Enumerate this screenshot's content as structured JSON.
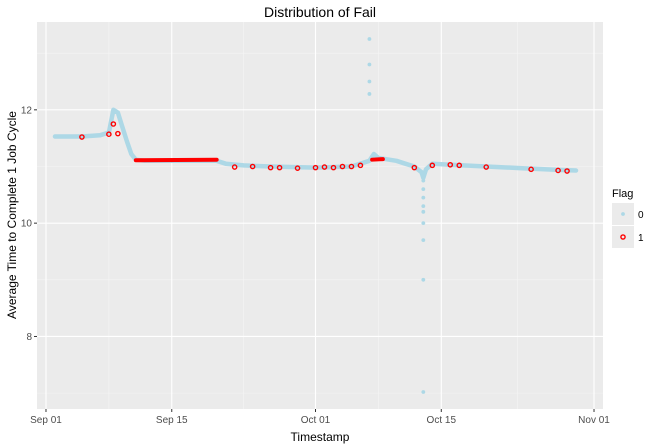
{
  "chart_data": {
    "type": "scatter",
    "title": "Distribution of Fail",
    "xlabel": "Timestamp",
    "ylabel": "Average Time to Complete 1 Job Cycle",
    "x_axis": {
      "type": "date",
      "range": [
        "2023-08-31",
        "2023-11-02"
      ],
      "ticks": [
        {
          "date": "2023-09-01",
          "label": "Sep 01"
        },
        {
          "date": "2023-09-15",
          "label": "Sep 15"
        },
        {
          "date": "2023-10-01",
          "label": "Oct 01"
        },
        {
          "date": "2023-10-15",
          "label": "Oct 15"
        },
        {
          "date": "2023-11-01",
          "label": "Nov 01"
        }
      ]
    },
    "y_axis": {
      "range": [
        6.72,
        13.55
      ],
      "ticks": [
        8,
        10,
        12
      ]
    },
    "grid": true,
    "background": "#ebebeb",
    "legend": {
      "title": "Flag",
      "placement": "right",
      "entries": [
        {
          "label": "0",
          "color": "#add8e6"
        },
        {
          "label": "1",
          "color": "#ff0000"
        }
      ]
    },
    "series": [
      {
        "name": "0",
        "color": "#add8e6",
        "line": [
          [
            "2023-09-02",
            11.53
          ],
          [
            "2023-09-05",
            11.53
          ],
          [
            "2023-09-07",
            11.55
          ],
          [
            "2023-09-08",
            11.6
          ],
          [
            "2023-09-08.5",
            12.0
          ],
          [
            "2023-09-09",
            11.95
          ],
          [
            "2023-09-09.5",
            11.7
          ],
          [
            "2023-09-10",
            11.45
          ],
          [
            "2023-09-10.5",
            11.22
          ],
          [
            "2023-09-11",
            11.12
          ],
          [
            "2023-09-12",
            11.1
          ],
          [
            "2023-09-20",
            11.1
          ],
          [
            "2023-09-21",
            11.05
          ],
          [
            "2023-09-23",
            11.02
          ],
          [
            "2023-09-26",
            11.0
          ],
          [
            "2023-10-01",
            10.98
          ],
          [
            "2023-10-05",
            11.0
          ],
          [
            "2023-10-07",
            11.1
          ],
          [
            "2023-10-07.5",
            11.22
          ],
          [
            "2023-10-08",
            11.15
          ],
          [
            "2023-10-10",
            11.1
          ],
          [
            "2023-10-11",
            11.05
          ],
          [
            "2023-10-12",
            11.0
          ],
          [
            "2023-10-12.8",
            10.9
          ],
          [
            "2023-10-13",
            10.8
          ],
          [
            "2023-10-13.3",
            10.95
          ],
          [
            "2023-10-14",
            11.05
          ],
          [
            "2023-10-16",
            11.03
          ],
          [
            "2023-10-20",
            11.0
          ],
          [
            "2023-10-24",
            10.97
          ],
          [
            "2023-10-28",
            10.94
          ],
          [
            "2023-10-30",
            10.93
          ]
        ],
        "points": [
          [
            "2023-10-07",
            13.25
          ],
          [
            "2023-10-07",
            12.8
          ],
          [
            "2023-10-07",
            12.5
          ],
          [
            "2023-10-07",
            12.28
          ],
          [
            "2023-10-13",
            10.75
          ],
          [
            "2023-10-13",
            10.6
          ],
          [
            "2023-10-13",
            10.45
          ],
          [
            "2023-10-13",
            10.3
          ],
          [
            "2023-10-13",
            10.2
          ],
          [
            "2023-10-13",
            10.0
          ],
          [
            "2023-10-13",
            9.7
          ],
          [
            "2023-10-13",
            9.0
          ],
          [
            "2023-10-13",
            7.02
          ]
        ]
      },
      {
        "name": "1",
        "color": "#ff0000",
        "line": [
          [
            "2023-09-11",
            11.11
          ],
          [
            "2023-09-20",
            11.12
          ],
          [
            "2023-10-07.3",
            11.12
          ],
          [
            "2023-10-08.5",
            11.13
          ]
        ],
        "points": [
          [
            "2023-09-05",
            11.52
          ],
          [
            "2023-09-08",
            11.57
          ],
          [
            "2023-09-08.5",
            11.75
          ],
          [
            "2023-09-09",
            11.58
          ],
          [
            "2023-09-22",
            10.99
          ],
          [
            "2023-09-24",
            11.0
          ],
          [
            "2023-09-26",
            10.98
          ],
          [
            "2023-09-27",
            10.98
          ],
          [
            "2023-09-29",
            10.97
          ],
          [
            "2023-10-01",
            10.98
          ],
          [
            "2023-10-02",
            10.99
          ],
          [
            "2023-10-03",
            10.98
          ],
          [
            "2023-10-04",
            11.0
          ],
          [
            "2023-10-05",
            11.0
          ],
          [
            "2023-10-06",
            11.02
          ],
          [
            "2023-10-12",
            10.98
          ],
          [
            "2023-10-14",
            11.02
          ],
          [
            "2023-10-16",
            11.03
          ],
          [
            "2023-10-17",
            11.02
          ],
          [
            "2023-10-20",
            10.99
          ],
          [
            "2023-10-25",
            10.95
          ],
          [
            "2023-10-28",
            10.93
          ],
          [
            "2023-10-29",
            10.92
          ]
        ]
      }
    ]
  }
}
